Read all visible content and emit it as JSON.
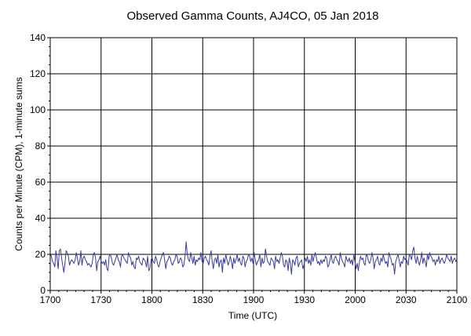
{
  "chart_data": {
    "type": "line",
    "title": "Observed Gamma Counts, AJ4CO, 05 Jan 2018",
    "xlabel": "Time (UTC)",
    "ylabel": "Counts per Minute (CPM), 1-minute sums",
    "x_tick_labels": [
      "1700",
      "1730",
      "1800",
      "1830",
      "1900",
      "1930",
      "2000",
      "2030",
      "2100"
    ],
    "y_ticks": [
      0,
      20,
      40,
      60,
      80,
      100,
      120,
      140
    ],
    "xlim_minutes_since_1700": [
      0,
      240
    ],
    "ylim": [
      0,
      140
    ],
    "grid": true,
    "colors": {
      "series": "#3a3aa0",
      "grid": "#000000",
      "frame": "#000000"
    },
    "series": [
      {
        "values": [
          20,
          19,
          16,
          15,
          13,
          22,
          18,
          12,
          22,
          23,
          18,
          14,
          10,
          15,
          22,
          21,
          19,
          14,
          16,
          17,
          16,
          15,
          17,
          21,
          18,
          14,
          16,
          22,
          14,
          18,
          19,
          17,
          16,
          14,
          15,
          14,
          13,
          15,
          20,
          21,
          18,
          11,
          16,
          17,
          19,
          16,
          15,
          16,
          14,
          17,
          12,
          11,
          19,
          20,
          18,
          15,
          14,
          16,
          18,
          20,
          17,
          16,
          13,
          19,
          20,
          18,
          17,
          16,
          15,
          21,
          19,
          18,
          14,
          16,
          13,
          12,
          18,
          17,
          19,
          16,
          15,
          14,
          18,
          17,
          16,
          13,
          19,
          11,
          12,
          17,
          18,
          16,
          15,
          19,
          17,
          14,
          13,
          16,
          18,
          20,
          21,
          17,
          12,
          16,
          17,
          19,
          18,
          15,
          14,
          16,
          17,
          20,
          19,
          15,
          16,
          18,
          17,
          13,
          14,
          19,
          27,
          20,
          17,
          16,
          21,
          18,
          15,
          19,
          14,
          17,
          16,
          18,
          17,
          21,
          16,
          15,
          18,
          19,
          17,
          16,
          14,
          19,
          22,
          16,
          12,
          17,
          18,
          15,
          20,
          13,
          16,
          17,
          10,
          18,
          15,
          20,
          17,
          14,
          16,
          19,
          16,
          12,
          18,
          15,
          17,
          20,
          16,
          18,
          15,
          14,
          19,
          18,
          13,
          16,
          17,
          20,
          19,
          16,
          18,
          15,
          21,
          17,
          14,
          16,
          17,
          20,
          13,
          18,
          15,
          16,
          23,
          19,
          16,
          15,
          14,
          18,
          17,
          16,
          12,
          19,
          16,
          17,
          15,
          18,
          21,
          19,
          14,
          13,
          17,
          16,
          11,
          18,
          15,
          9,
          17,
          16,
          14,
          18,
          19,
          13,
          15,
          16,
          17,
          12,
          14,
          18,
          16,
          19,
          15,
          17,
          14,
          20,
          16,
          19,
          21,
          18,
          15,
          16,
          14,
          17,
          15,
          17,
          16,
          19,
          18,
          13,
          14,
          17,
          20,
          16,
          15,
          18,
          19,
          17,
          16,
          14,
          21,
          18,
          16,
          15,
          13,
          19,
          17,
          16,
          18,
          15,
          17,
          14,
          20,
          16,
          12,
          15,
          11,
          16,
          19,
          17,
          18,
          15,
          14,
          20,
          19,
          16,
          15,
          17,
          21,
          18,
          12,
          16,
          17,
          19,
          15,
          14,
          18,
          16,
          20,
          17,
          15,
          16,
          13,
          21,
          19,
          17,
          14,
          15,
          9,
          16,
          18,
          20,
          17,
          13,
          16,
          15,
          19,
          17,
          18,
          16,
          14,
          20,
          19,
          17,
          22,
          24,
          18,
          15,
          19,
          16,
          14,
          17,
          21,
          15,
          18,
          16,
          13,
          20,
          17,
          21,
          19,
          18,
          16,
          17,
          14,
          17,
          16,
          19,
          15,
          17,
          18,
          16,
          15,
          17,
          20,
          18,
          17,
          16,
          19,
          15,
          17,
          18,
          16,
          17
        ]
      }
    ]
  }
}
